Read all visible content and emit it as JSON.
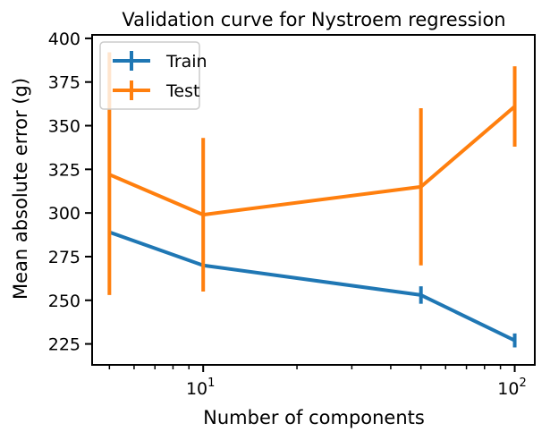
{
  "chart_data": {
    "type": "line",
    "title": "Validation curve for Nystroem regression",
    "xlabel": "Number of components",
    "ylabel": "Mean absolute error (g)",
    "xscale": "log",
    "xlim": [
      4.4,
      116
    ],
    "ylim": [
      213,
      402
    ],
    "yticks": [
      225,
      250,
      275,
      300,
      325,
      350,
      375,
      400
    ],
    "xticks_major": [
      {
        "value": 10,
        "base": "10",
        "exp": "1"
      },
      {
        "value": 100,
        "base": "10",
        "exp": "2"
      }
    ],
    "x": [
      5,
      10,
      50,
      100
    ],
    "series": [
      {
        "name": "Train",
        "color": "#1f77b4",
        "values": [
          289,
          270,
          253,
          227
        ],
        "err_low": [
          289,
          270,
          248,
          223
        ],
        "err_high": [
          289,
          270,
          258,
          231
        ]
      },
      {
        "name": "Test",
        "color": "#ff7f0e",
        "values": [
          322,
          299,
          315,
          361
        ],
        "err_low": [
          253,
          255,
          270,
          338
        ],
        "err_high": [
          392,
          343,
          360,
          384
        ]
      }
    ],
    "legend_position": "upper-left",
    "grid": false
  }
}
